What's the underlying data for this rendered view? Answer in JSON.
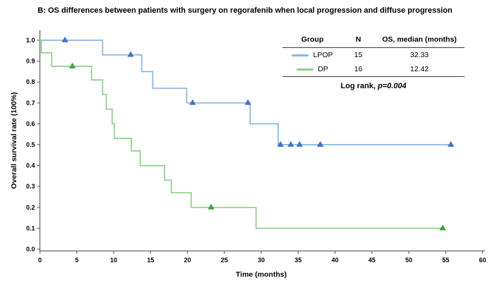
{
  "title": "B: OS differences between patients with surgery on regorafenib when local progression and diffuse progression",
  "stats_table": {
    "headers": {
      "group": "Group",
      "n": "N",
      "os": "OS, median (months)"
    },
    "rows": [
      {
        "group": "LPOP",
        "n": "15",
        "os": "32.33"
      },
      {
        "group": "DP",
        "n": "16",
        "os": "12.42"
      }
    ],
    "log_rank_label": "Log rank, ",
    "log_rank_value": "p=0.004"
  },
  "chart_data": {
    "type": "line",
    "subtype": "kaplan-meier-step",
    "title": "B: OS differences between patients with surgery on regorafenib when local progression and diffuse progression",
    "xlabel": "Time (months)",
    "ylabel": "Overall survival rate (100%)",
    "xlim": [
      0,
      60
    ],
    "ylim": [
      0,
      1
    ],
    "x_ticks": [
      0,
      5,
      10,
      15,
      20,
      25,
      30,
      35,
      40,
      45,
      50,
      55,
      60
    ],
    "y_ticks": [
      "0.0",
      "0.1",
      "0.2",
      "0.3",
      "0.4",
      "0.5",
      "0.6",
      "0.7",
      "0.8",
      "0.9",
      "1.0"
    ],
    "grid": false,
    "legend_position": "table-top-right",
    "axis_color": "#666666",
    "series": [
      {
        "name": "LPOP",
        "n": 15,
        "median_os": 32.33,
        "color": "#8ab6e4",
        "marker_color": "#4574c4",
        "start": 1.0,
        "drops": [
          [
            8.5,
            0.93
          ],
          [
            13.8,
            0.85
          ],
          [
            15.3,
            0.77
          ],
          [
            19.9,
            0.7
          ],
          [
            28.5,
            0.6
          ],
          [
            32.3,
            0.5
          ]
        ],
        "end": 55.9,
        "censor_marks": [
          [
            3.4,
            1.0
          ],
          [
            12.3,
            0.93
          ],
          [
            20.7,
            0.7
          ],
          [
            28.2,
            0.7
          ],
          [
            32.6,
            0.5
          ],
          [
            34.0,
            0.5
          ],
          [
            35.2,
            0.5
          ],
          [
            38.0,
            0.5
          ],
          [
            55.7,
            0.5
          ]
        ]
      },
      {
        "name": "DP",
        "n": 16,
        "median_os": 12.42,
        "color": "#8ed089",
        "marker_color": "#3da23d",
        "start": 1.0,
        "drops": [
          [
            0.2,
            0.94
          ],
          [
            1.6,
            0.875
          ],
          [
            7.0,
            0.81
          ],
          [
            8.5,
            0.74
          ],
          [
            9.0,
            0.67
          ],
          [
            9.8,
            0.6
          ],
          [
            10.1,
            0.53
          ],
          [
            12.4,
            0.47
          ],
          [
            13.6,
            0.4
          ],
          [
            16.9,
            0.33
          ],
          [
            17.8,
            0.27
          ],
          [
            20.5,
            0.2
          ],
          [
            29.3,
            0.1
          ]
        ],
        "end": 54.8,
        "censor_marks": [
          [
            4.4,
            0.875
          ],
          [
            23.2,
            0.2
          ],
          [
            54.6,
            0.1
          ]
        ]
      }
    ]
  }
}
